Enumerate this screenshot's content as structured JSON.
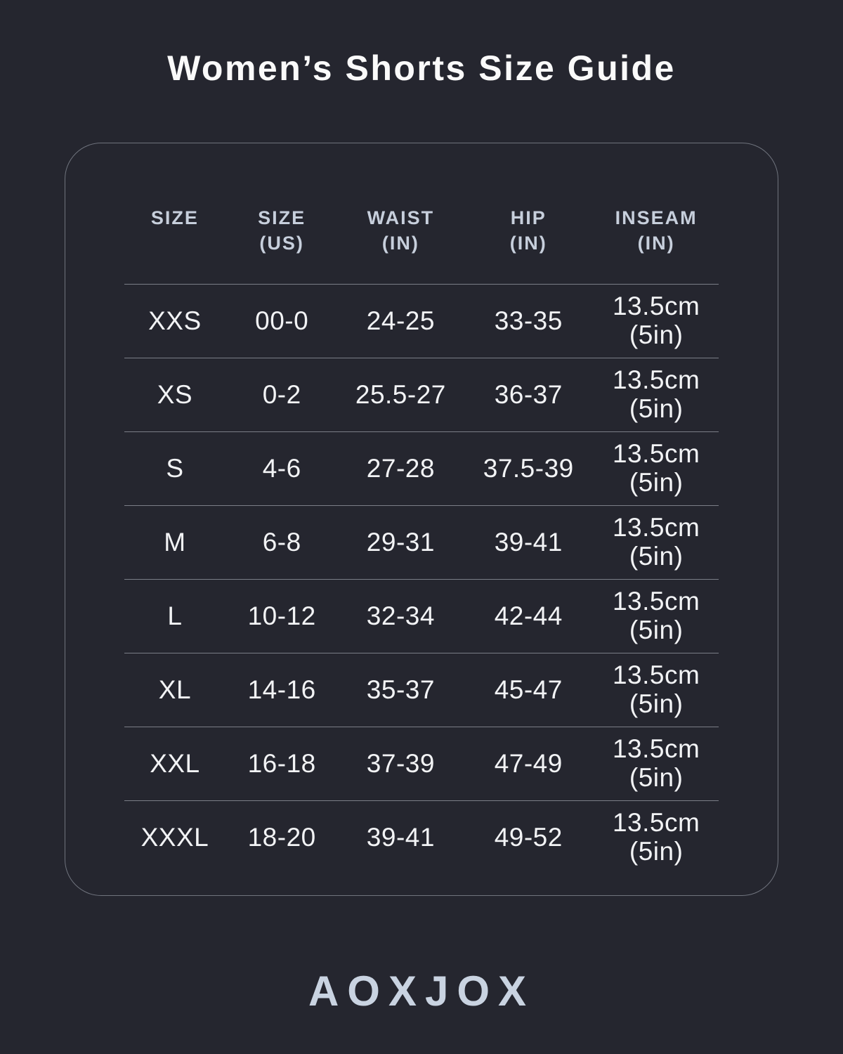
{
  "title": "Women’s Shorts Size Guide",
  "brand_logo": "AOXJOX",
  "colors": {
    "background": "#25262f",
    "card_border": "#6f737d",
    "row_divider": "#7b7e87",
    "title_text": "#fafafa",
    "header_text": "#c7cfdc",
    "cell_text": "#f2f3f5",
    "logo_text": "#c9d3e1"
  },
  "chart_data": {
    "type": "table",
    "title": "Women’s Shorts Size Guide",
    "columns": [
      "SIZE",
      "SIZE (US)",
      "WAIST (IN)",
      "HIP (IN)",
      "INSEAM (IN)"
    ],
    "rows": [
      [
        "XXS",
        "00-0",
        "24-25",
        "33-35",
        "13.5cm (5in)"
      ],
      [
        "XS",
        "0-2",
        "25.5-27",
        "36-37",
        "13.5cm (5in)"
      ],
      [
        "S",
        "4-6",
        "27-28",
        "37.5-39",
        "13.5cm (5in)"
      ],
      [
        "M",
        "6-8",
        "29-31",
        "39-41",
        "13.5cm (5in)"
      ],
      [
        "L",
        "10-12",
        "32-34",
        "42-44",
        "13.5cm (5in)"
      ],
      [
        "XL",
        "14-16",
        "35-37",
        "45-47",
        "13.5cm (5in)"
      ],
      [
        "XXL",
        "16-18",
        "37-39",
        "47-49",
        "13.5cm (5in)"
      ],
      [
        "XXXL",
        "18-20",
        "39-41",
        "49-52",
        "13.5cm (5in)"
      ]
    ]
  },
  "table": {
    "headers": [
      {
        "line1": "SIZE",
        "line2": ""
      },
      {
        "line1": "SIZE",
        "line2": "(US)"
      },
      {
        "line1": "WAIST",
        "line2": "(IN)"
      },
      {
        "line1": "HIP",
        "line2": "(IN)"
      },
      {
        "line1": "INSEAM",
        "line2": "(IN)"
      }
    ],
    "rows": [
      {
        "size": "XXS",
        "size_us": "00-0",
        "waist_in": "24-25",
        "hip_in": "33-35",
        "inseam_cm": "13.5cm",
        "inseam_in": "(5in)"
      },
      {
        "size": "XS",
        "size_us": "0-2",
        "waist_in": "25.5-27",
        "hip_in": "36-37",
        "inseam_cm": "13.5cm",
        "inseam_in": "(5in)"
      },
      {
        "size": "S",
        "size_us": "4-6",
        "waist_in": "27-28",
        "hip_in": "37.5-39",
        "inseam_cm": "13.5cm",
        "inseam_in": "(5in)"
      },
      {
        "size": "M",
        "size_us": "6-8",
        "waist_in": "29-31",
        "hip_in": "39-41",
        "inseam_cm": "13.5cm",
        "inseam_in": "(5in)"
      },
      {
        "size": "L",
        "size_us": "10-12",
        "waist_in": "32-34",
        "hip_in": "42-44",
        "inseam_cm": "13.5cm",
        "inseam_in": "(5in)"
      },
      {
        "size": "XL",
        "size_us": "14-16",
        "waist_in": "35-37",
        "hip_in": "45-47",
        "inseam_cm": "13.5cm",
        "inseam_in": "(5in)"
      },
      {
        "size": "XXL",
        "size_us": "16-18",
        "waist_in": "37-39",
        "hip_in": "47-49",
        "inseam_cm": "13.5cm",
        "inseam_in": "(5in)"
      },
      {
        "size": "XXXL",
        "size_us": "18-20",
        "waist_in": "39-41",
        "hip_in": "49-52",
        "inseam_cm": "13.5cm",
        "inseam_in": "(5in)"
      }
    ]
  }
}
